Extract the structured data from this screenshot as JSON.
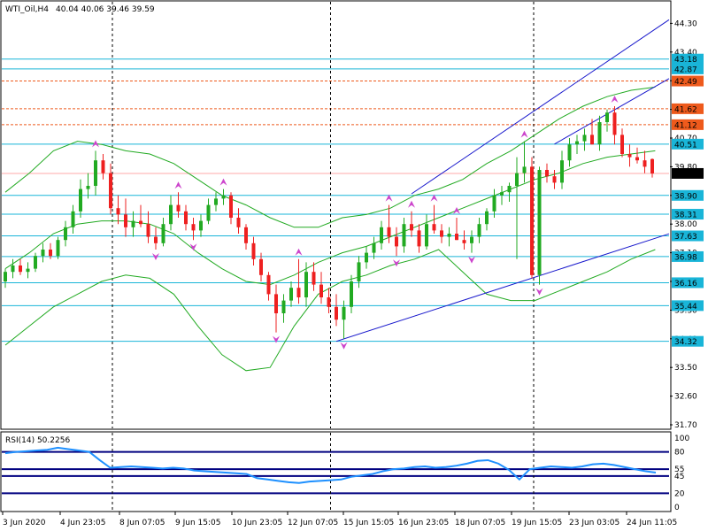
{
  "header": {
    "symbol": "WTI_Oil,H4",
    "ohlc": "40.04 40.06 39.46 39.59"
  },
  "rsi_label": "RSI(14) 50.2256",
  "colors": {
    "bull": "#22aa22",
    "bear": "#ee2020",
    "bollinger": "#22aa22",
    "level": "#19b5d8",
    "red_level": "#ee5a1c",
    "trend": "#1818cc",
    "rsi_line": "#1e90ff",
    "rsi_level": "#000080",
    "fractal": "#cc44cc",
    "price_line": "#ffaaaa"
  },
  "chart_data": [
    {
      "type": "candlestick",
      "title": "WTI_Oil,H4",
      "ylim": [
        31.7,
        44.7
      ],
      "y_ticks": [
        "44.30",
        "43.40",
        "42.50",
        "41.60",
        "40.70",
        "39.80",
        "38.90",
        "38.00",
        "37.10",
        "36.20",
        "35.30",
        "34.40",
        "33.50",
        "32.60",
        "31.70"
      ],
      "x_labels": [
        "3 Jun 2020",
        "4 Jun 23:05",
        "8 Jun 07:05",
        "9 Jun 15:05",
        "10 Jun 23:05",
        "12 Jun 07:05",
        "15 Jun 15:05",
        "16 Jun 23:05",
        "18 Jun 07:05",
        "19 Jun 15:05",
        "23 Jun 03:05",
        "24 Jun 11:05"
      ],
      "levels": [
        {
          "value": "43.18",
          "kind": "blue"
        },
        {
          "value": "42.87",
          "kind": "blue"
        },
        {
          "value": "42.49",
          "kind": "red"
        },
        {
          "value": "41.62",
          "kind": "red"
        },
        {
          "value": "41.12",
          "kind": "red"
        },
        {
          "value": "40.51",
          "kind": "blue"
        },
        {
          "value": "38.90",
          "kind": "blue"
        },
        {
          "value": "38.31",
          "kind": "blue"
        },
        {
          "value": "37.63",
          "kind": "blue"
        },
        {
          "value": "36.98",
          "kind": "blue"
        },
        {
          "value": "36.16",
          "kind": "blue"
        },
        {
          "value": "35.44",
          "kind": "blue"
        },
        {
          "value": "34.32",
          "kind": "blue"
        }
      ],
      "current_price": "39.59",
      "candles": [
        [
          36.2,
          36.6,
          36.0,
          36.5
        ],
        [
          36.5,
          36.9,
          36.3,
          36.7
        ],
        [
          36.7,
          36.9,
          36.4,
          36.5
        ],
        [
          36.5,
          36.8,
          36.3,
          36.6
        ],
        [
          36.6,
          37.1,
          36.5,
          37.0
        ],
        [
          37.0,
          37.4,
          36.8,
          37.2
        ],
        [
          37.2,
          37.4,
          36.9,
          37.0
        ],
        [
          37.0,
          37.6,
          36.9,
          37.5
        ],
        [
          37.5,
          38.1,
          37.3,
          37.9
        ],
        [
          37.9,
          38.6,
          37.7,
          38.4
        ],
        [
          38.4,
          39.4,
          38.2,
          39.1
        ],
        [
          39.1,
          39.6,
          38.8,
          39.2
        ],
        [
          39.2,
          40.3,
          38.9,
          40.0
        ],
        [
          40.0,
          40.2,
          39.4,
          39.6
        ],
        [
          39.6,
          39.9,
          38.3,
          38.5
        ],
        [
          38.5,
          38.9,
          38.0,
          38.3
        ],
        [
          38.3,
          38.8,
          37.6,
          37.9
        ],
        [
          37.9,
          38.4,
          37.6,
          38.1
        ],
        [
          38.1,
          38.6,
          37.9,
          38.0
        ],
        [
          38.0,
          38.4,
          37.4,
          37.6
        ],
        [
          37.6,
          37.9,
          37.2,
          37.4
        ],
        [
          37.4,
          38.2,
          37.3,
          38.0
        ],
        [
          38.0,
          38.9,
          37.8,
          38.6
        ],
        [
          38.6,
          39.0,
          38.2,
          38.4
        ],
        [
          38.4,
          38.6,
          37.8,
          38.0
        ],
        [
          38.0,
          38.2,
          37.5,
          37.8
        ],
        [
          37.8,
          38.3,
          37.6,
          38.1
        ],
        [
          38.1,
          38.8,
          38.0,
          38.6
        ],
        [
          38.6,
          39.0,
          38.4,
          38.8
        ],
        [
          38.8,
          39.1,
          38.6,
          38.9
        ],
        [
          38.9,
          39.0,
          38.0,
          38.2
        ],
        [
          38.2,
          38.5,
          37.7,
          37.9
        ],
        [
          37.9,
          38.0,
          37.2,
          37.4
        ],
        [
          37.4,
          37.6,
          36.7,
          36.9
        ],
        [
          36.9,
          37.1,
          36.2,
          36.4
        ],
        [
          36.4,
          36.5,
          35.6,
          35.8
        ],
        [
          35.8,
          36.1,
          34.6,
          35.2
        ],
        [
          35.2,
          35.8,
          34.9,
          35.6
        ],
        [
          35.6,
          36.2,
          35.4,
          36.0
        ],
        [
          36.0,
          36.9,
          35.5,
          35.7
        ],
        [
          35.7,
          36.8,
          35.4,
          36.5
        ],
        [
          36.5,
          36.8,
          35.9,
          36.1
        ],
        [
          36.1,
          36.5,
          35.5,
          35.7
        ],
        [
          35.7,
          36.0,
          35.2,
          35.4
        ],
        [
          35.4,
          35.8,
          34.8,
          35.0
        ],
        [
          35.0,
          35.6,
          34.4,
          35.4
        ],
        [
          35.4,
          36.4,
          35.2,
          36.2
        ],
        [
          36.2,
          37.0,
          36.0,
          36.8
        ],
        [
          36.8,
          37.3,
          36.6,
          37.1
        ],
        [
          37.1,
          37.6,
          36.9,
          37.4
        ],
        [
          37.4,
          38.1,
          37.2,
          37.9
        ],
        [
          37.9,
          38.6,
          37.4,
          37.6
        ],
        [
          37.6,
          37.9,
          37.0,
          37.3
        ],
        [
          37.3,
          38.2,
          37.1,
          38.0
        ],
        [
          38.0,
          38.4,
          37.6,
          37.8
        ],
        [
          37.8,
          38.0,
          37.1,
          37.3
        ],
        [
          37.3,
          38.3,
          37.2,
          38.0
        ],
        [
          38.0,
          38.6,
          37.7,
          37.8
        ],
        [
          37.8,
          38.0,
          37.4,
          37.6
        ],
        [
          37.6,
          37.9,
          37.3,
          37.7
        ],
        [
          37.7,
          38.2,
          37.5,
          37.5
        ],
        [
          37.5,
          37.8,
          37.2,
          37.4
        ],
        [
          37.4,
          37.8,
          37.1,
          37.6
        ],
        [
          37.6,
          38.2,
          37.4,
          38.0
        ],
        [
          38.0,
          38.5,
          37.8,
          38.4
        ],
        [
          38.4,
          39.1,
          38.2,
          38.9
        ],
        [
          38.9,
          39.2,
          38.6,
          39.0
        ],
        [
          39.0,
          39.3,
          38.7,
          39.2
        ],
        [
          39.2,
          40.1,
          36.9,
          39.6
        ],
        [
          39.6,
          40.6,
          39.3,
          39.8
        ],
        [
          39.8,
          40.1,
          36.3,
          36.4
        ],
        [
          36.4,
          39.8,
          36.1,
          39.7
        ],
        [
          39.7,
          39.9,
          39.3,
          39.5
        ],
        [
          39.5,
          39.7,
          39.1,
          39.3
        ],
        [
          39.3,
          40.3,
          39.1,
          40.0
        ],
        [
          40.0,
          40.7,
          39.8,
          40.5
        ],
        [
          40.5,
          40.8,
          40.2,
          40.6
        ],
        [
          40.6,
          41.0,
          40.3,
          40.8
        ],
        [
          40.8,
          41.3,
          40.5,
          40.5
        ],
        [
          40.5,
          41.4,
          40.3,
          41.2
        ],
        [
          41.2,
          41.6,
          40.9,
          41.5
        ],
        [
          41.5,
          41.7,
          40.5,
          40.8
        ],
        [
          40.8,
          41.0,
          40.1,
          40.2
        ],
        [
          40.2,
          40.5,
          39.8,
          40.1
        ],
        [
          40.1,
          40.4,
          39.9,
          40.0
        ],
        [
          40.0,
          40.3,
          39.6,
          39.8
        ],
        [
          40.04,
          40.06,
          39.46,
          39.59
        ]
      ],
      "bollinger_upper": [
        39.0,
        39.6,
        40.3,
        40.6,
        40.5,
        40.3,
        40.2,
        39.9,
        39.4,
        38.9,
        38.6,
        38.2,
        37.9,
        37.9,
        38.2,
        38.3,
        38.5,
        38.9,
        39.1,
        39.4,
        39.9,
        40.3,
        40.8,
        41.3,
        41.7,
        42.0,
        42.2,
        42.3
      ],
      "bollinger_mid": [
        36.6,
        37.1,
        37.7,
        38.0,
        38.1,
        38.1,
        38.0,
        37.7,
        37.1,
        36.6,
        36.2,
        36.1,
        36.4,
        36.8,
        37.1,
        37.3,
        37.6,
        37.9,
        38.2,
        38.5,
        38.8,
        39.1,
        39.4,
        39.6,
        39.9,
        40.1,
        40.2,
        40.3
      ],
      "bollinger_lower": [
        34.2,
        34.8,
        35.4,
        35.8,
        36.2,
        36.4,
        36.3,
        35.8,
        34.8,
        33.9,
        33.4,
        33.5,
        34.8,
        35.8,
        36.2,
        36.4,
        36.7,
        36.9,
        37.2,
        36.5,
        35.8,
        35.6,
        35.6,
        35.9,
        36.2,
        36.5,
        36.9,
        37.2
      ],
      "trendlines": [
        {
          "from": [
            54,
            38.95
          ],
          "to": [
            80,
            43.1
          ]
        },
        {
          "from": [
            73,
            40.51
          ],
          "to": [
            87,
            42.4
          ]
        },
        {
          "from": [
            44,
            34.32
          ],
          "to": [
            87,
            37.6
          ]
        }
      ]
    },
    {
      "type": "line",
      "title": "RSI(14) 50.2256",
      "ylim": [
        0,
        100
      ],
      "y_ticks": [
        "100",
        "80",
        "55",
        "45",
        "20",
        "0"
      ],
      "levels": [
        "80",
        "55",
        "45",
        "20"
      ],
      "values": [
        78,
        80,
        81,
        82,
        83,
        86,
        84,
        82,
        80,
        68,
        57,
        58,
        59,
        58,
        57,
        56,
        57,
        56,
        53,
        52,
        51,
        50,
        49,
        48,
        42,
        40,
        38,
        36,
        35,
        37,
        38,
        39,
        40,
        44,
        46,
        48,
        52,
        55,
        56,
        58,
        59,
        57,
        58,
        60,
        63,
        67,
        68,
        63,
        54,
        40,
        55,
        57,
        59,
        58,
        57,
        59,
        62,
        63,
        61,
        58,
        55,
        52,
        50
      ]
    }
  ]
}
